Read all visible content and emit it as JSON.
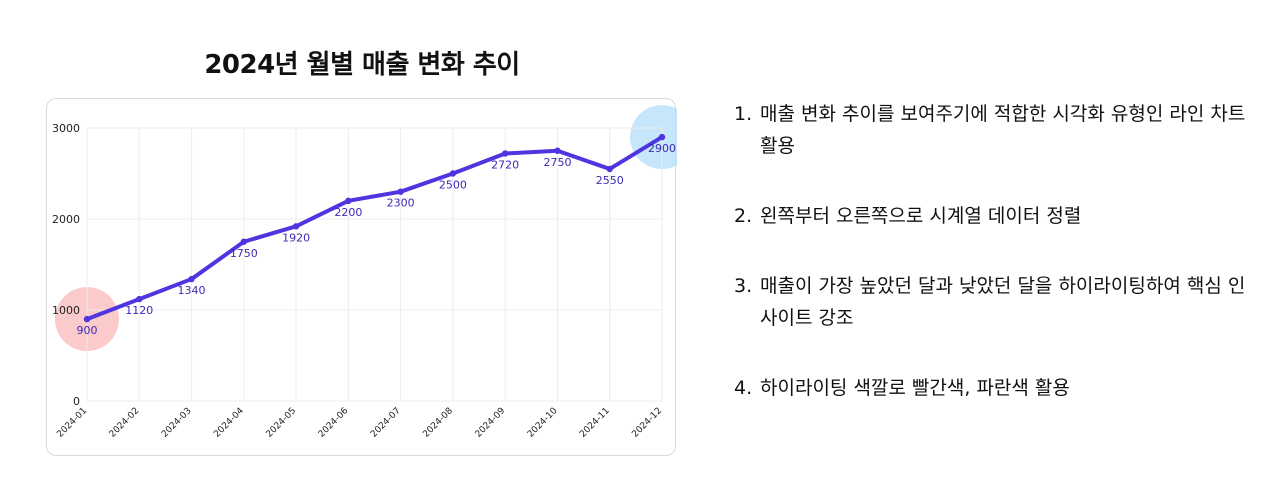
{
  "chart_data": {
    "type": "line",
    "title": "2024년 월별 매출 변화 추이",
    "categories": [
      "2024-01",
      "2024-02",
      "2024-03",
      "2024-04",
      "2024-05",
      "2024-06",
      "2024-07",
      "2024-08",
      "2024-09",
      "2024-10",
      "2024-11",
      "2024-12"
    ],
    "series": [
      {
        "values": [
          900,
          1120,
          1340,
          1750,
          1920,
          2200,
          2300,
          2500,
          2720,
          2750,
          2550,
          2900
        ]
      }
    ],
    "data_labels": [
      "900",
      "1120",
      "1340",
      "1750",
      "1920",
      "2200",
      "2300",
      "2500",
      "2720",
      "2750",
      "2550",
      "2900"
    ],
    "y_ticks": [
      0,
      1000,
      2000,
      3000
    ],
    "ylim": [
      0,
      3000
    ],
    "grid": true,
    "line_color": "#4f35e0",
    "label_color": "#3b2bb5",
    "highlights": [
      {
        "category": "2024-01",
        "color": "#f9b8b8"
      },
      {
        "category": "2024-12",
        "color": "#b3ddf7"
      }
    ]
  },
  "notes": [
    {
      "num": "1.",
      "text": "매출 변화 추이를 보여주기에 적합한 시각화 유형인 라인 차트 활용"
    },
    {
      "num": "2.",
      "text": "왼쪽부터 오른쪽으로 시계열 데이터 정렬"
    },
    {
      "num": "3.",
      "text": "매출이 가장 높았던 달과 낮았던 달을 하이라이팅하여 핵심 인사이트 강조"
    },
    {
      "num": "4.",
      "text": "하이라이팅 색깔로 빨간색, 파란색 활용"
    }
  ]
}
